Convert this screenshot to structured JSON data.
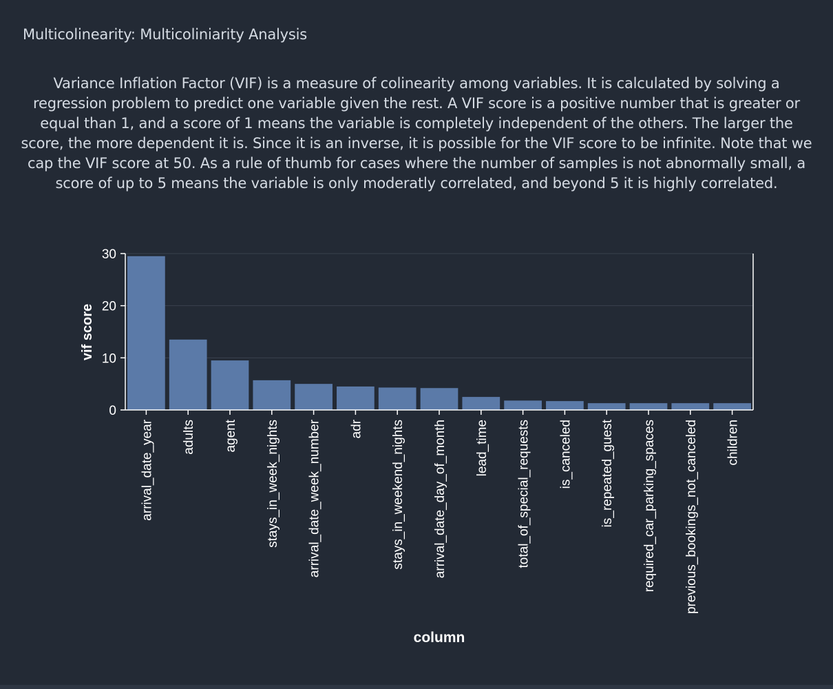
{
  "panel": {
    "title": "Multicolinearity: Multicoliniarity Analysis",
    "description": "Variance Inflation Factor (VIF) is a measure of colinearity among variables. It is calculated by solving a regression problem to predict one variable given the rest. A VIF score is a positive number that is greater or equal than 1, and a score of 1 means the variable is completely independent of the others. The larger the score, the more dependent it is. Since it is an inverse, it is possible for the VIF score to be infinite. Note that we cap the VIF score at 50. As a rule of thumb for cases where the number of samples is not abnormally small, a score of up to 5 means the variable is only moderatly correlated, and beyond 5 it is highly correlated."
  },
  "colors": {
    "background": "#232a35",
    "bar": "#5b7aa8",
    "text": "#ffffff",
    "gridline": "#39414d"
  },
  "chart_data": {
    "type": "bar",
    "categories": [
      "arrival_date_year",
      "adults",
      "agent",
      "stays_in_week_nights",
      "arrival_date_week_number",
      "adr",
      "stays_in_weekend_nights",
      "arrival_date_day_of_month",
      "lead_time",
      "total_of_special_requests",
      "is_canceled",
      "is_repeated_guest",
      "required_car_parking_spaces",
      "previous_bookings_not_canceled",
      "children"
    ],
    "values": [
      29.5,
      13.5,
      9.5,
      5.7,
      5.0,
      4.5,
      4.3,
      4.2,
      2.5,
      1.8,
      1.7,
      1.3,
      1.3,
      1.3,
      1.3
    ],
    "xlabel": "column",
    "ylabel": "vif score",
    "ylim": [
      0,
      30
    ],
    "yticks": [
      0,
      10,
      20,
      30
    ],
    "grid": true,
    "legend": "none"
  }
}
